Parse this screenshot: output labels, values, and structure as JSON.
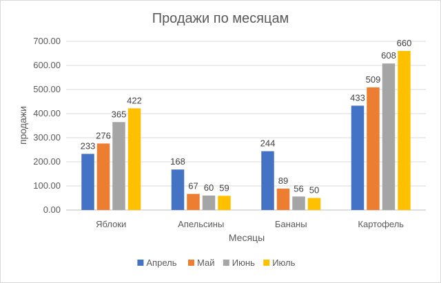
{
  "chart_data": {
    "type": "bar",
    "title": "Продажи по месяцам",
    "xlabel": "Месяцы",
    "ylabel": "продажи",
    "categories": [
      "Яблоки",
      "Апельсины",
      "Бананы",
      "Картофель"
    ],
    "ylim": [
      0,
      700
    ],
    "ytick_step": 100,
    "ytick_labels": [
      "0.00",
      "100.00",
      "200.00",
      "300.00",
      "400.00",
      "500.00",
      "600.00",
      "700.00"
    ],
    "grid": true,
    "legend_position": "bottom",
    "series": [
      {
        "name": "Апрель",
        "color": "#4472c4",
        "values": [
          233,
          168,
          244,
          433
        ]
      },
      {
        "name": "Май",
        "color": "#ed7d31",
        "values": [
          276,
          67,
          89,
          509
        ]
      },
      {
        "name": "Июнь",
        "color": "#a5a5a5",
        "values": [
          365,
          60,
          56,
          608
        ]
      },
      {
        "name": "Июль",
        "color": "#ffc000",
        "values": [
          422,
          59,
          50,
          660
        ]
      }
    ]
  }
}
